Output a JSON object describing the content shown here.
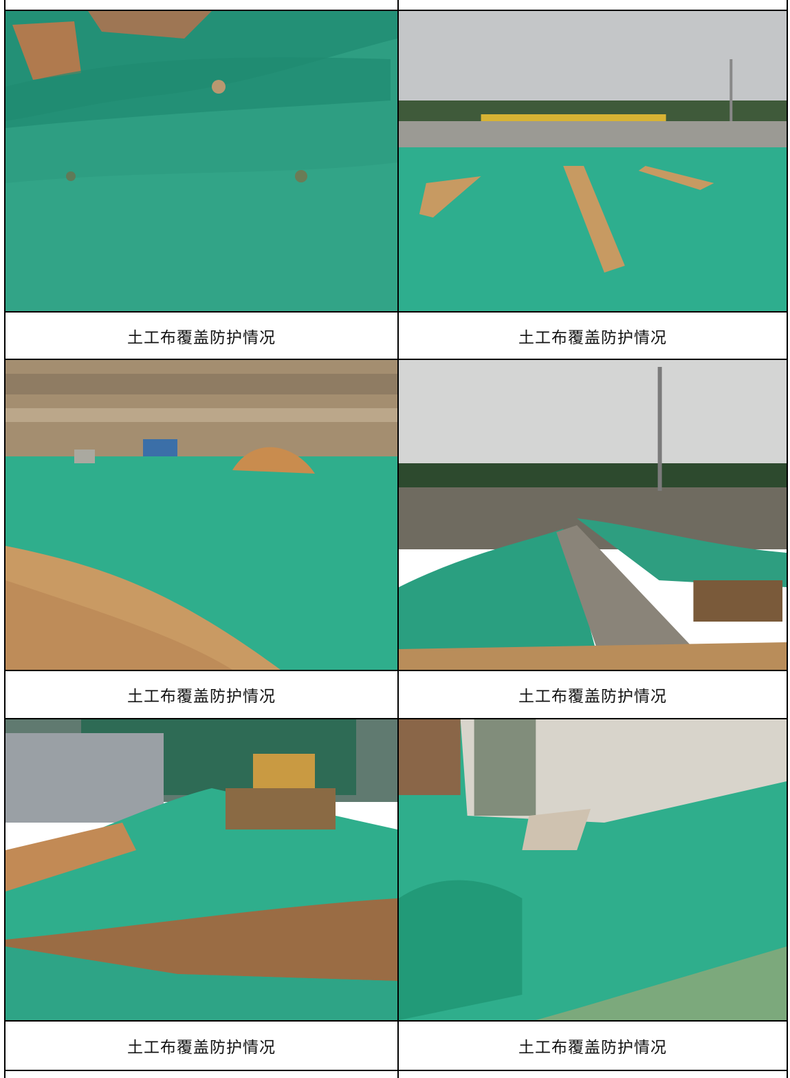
{
  "captions": [
    "土工布覆盖防护情况",
    "土工布覆盖防护情况",
    "土工布覆盖防护情况",
    "土工布覆盖防护情况",
    "土工布覆盖防护情况",
    "土工布覆盖防护情况"
  ],
  "colors": {
    "net_green": "#2fae8c",
    "soil": "#c99a63",
    "sky": "#c9cbcc"
  },
  "photos": [
    {
      "subject": "green net close-up"
    },
    {
      "subject": "covered site wide view"
    },
    {
      "subject": "covered slope with soil"
    },
    {
      "subject": "covered embankment with tower"
    },
    {
      "subject": "covered area near buildings"
    },
    {
      "subject": "net near concrete slab"
    }
  ]
}
